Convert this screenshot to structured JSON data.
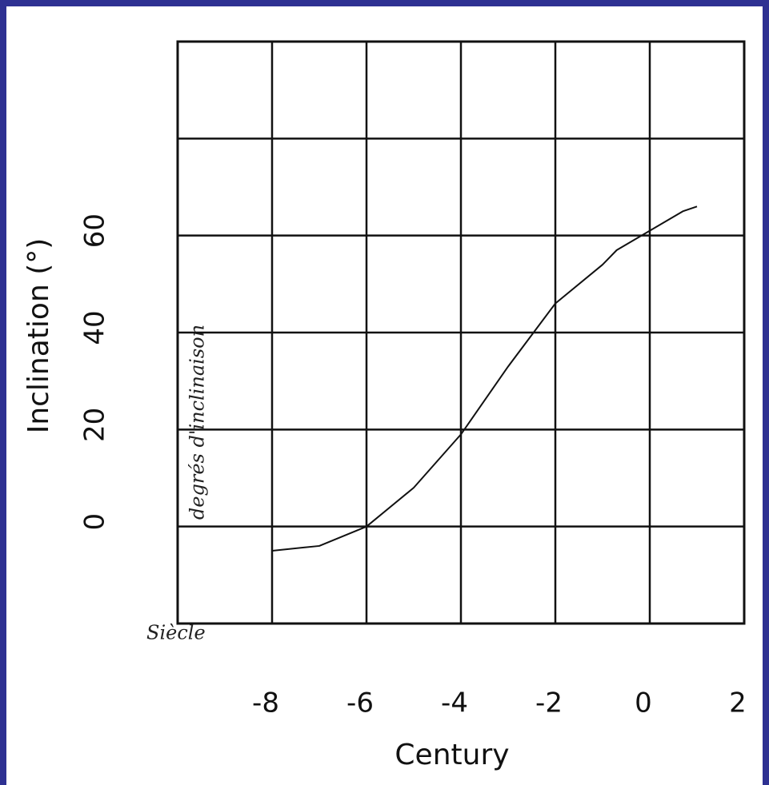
{
  "chart_data": {
    "type": "line",
    "x_label": "Century",
    "y_label": "Inclination (°)",
    "annotations": [
      "Siècle",
      "degrés d'inclinaison"
    ],
    "x": [
      -8,
      -7,
      -6,
      -5,
      -4,
      -3,
      -2,
      -1,
      -0.7,
      0,
      0.7,
      1
    ],
    "series": [
      {
        "color": "#111111",
        "values": [
          -5,
          -4,
          0,
          8,
          19,
          33,
          46,
          54,
          57,
          61,
          65,
          66
        ]
      }
    ],
    "xlim": [
      -10,
      2
    ],
    "xticks": [
      -8,
      -6,
      -4,
      -2,
      0,
      2
    ],
    "ylim": [
      -20,
      100
    ],
    "yticks": [
      0,
      20,
      40,
      60
    ],
    "grid": true
  }
}
